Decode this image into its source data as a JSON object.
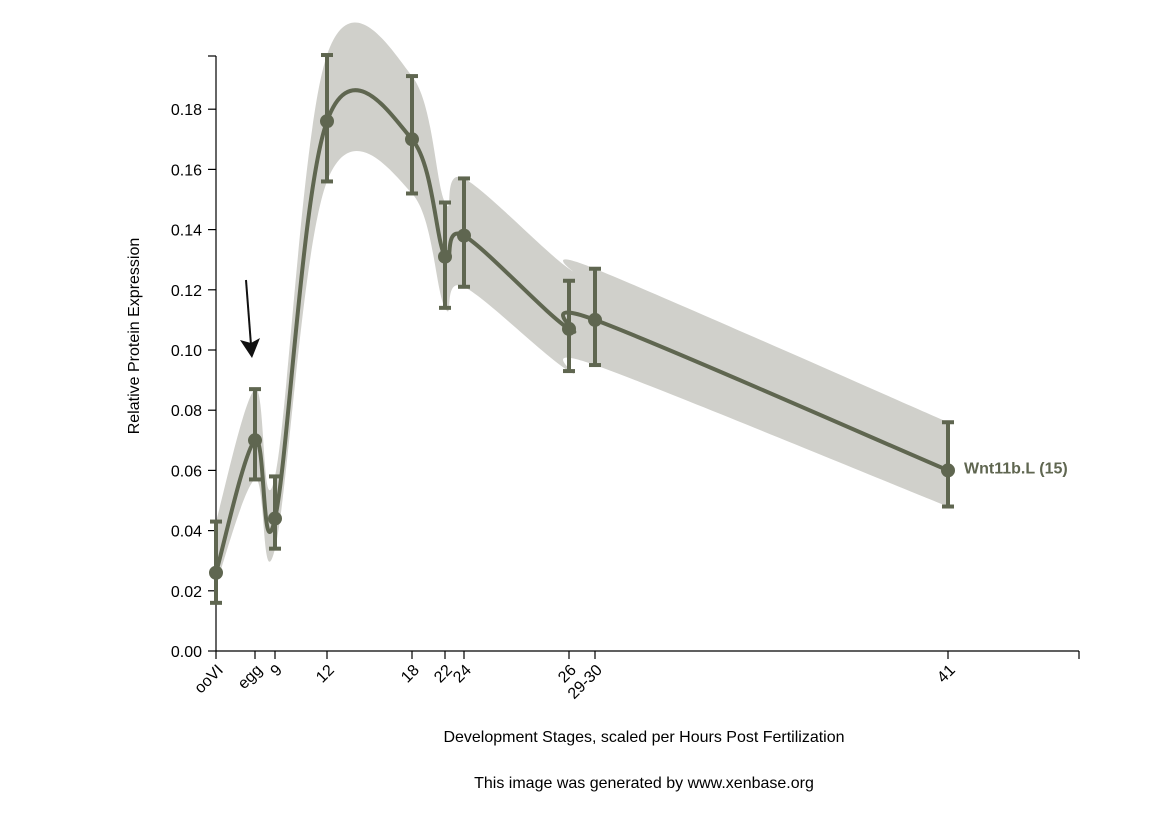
{
  "chart_data": {
    "type": "line",
    "title": "",
    "xlabel": "Development Stages, scaled per Hours Post Fertilization",
    "ylabel": "Relative Protein Expression",
    "ylim": [
      0,
      0.198
    ],
    "yticks": [
      "0.00",
      "0.02",
      "0.04",
      "0.06",
      "0.08",
      "0.10",
      "0.12",
      "0.14",
      "0.16",
      "0.18"
    ],
    "x_axis_note": "stages placed proportionally to hours post fertilization",
    "grid": false,
    "legend": "label at end of series (right)",
    "credit": "This image was generated by www.xenbase.org",
    "marker": "arrow pointing down at egg",
    "colors": {
      "series": "#5f6650",
      "band": "#d0d0cb"
    },
    "series": [
      {
        "name": "Wnt11b.L (15)",
        "points": [
          {
            "stage": "ooVI",
            "y": 0.026,
            "err_low": 0.016,
            "err_high": 0.043,
            "band_low": 0.022,
            "band_high": 0.043
          },
          {
            "stage": "egg",
            "y": 0.07,
            "err_low": 0.057,
            "err_high": 0.087,
            "band_low": 0.057,
            "band_high": 0.087
          },
          {
            "stage": "9",
            "y": 0.044,
            "err_low": 0.034,
            "err_high": 0.058,
            "band_low": 0.034,
            "band_high": 0.058
          },
          {
            "stage": "12",
            "y": 0.176,
            "err_low": 0.156,
            "err_high": 0.198,
            "band_low": 0.156,
            "band_high": 0.198
          },
          {
            "stage": "18",
            "y": 0.17,
            "err_low": 0.152,
            "err_high": 0.191,
            "band_low": 0.152,
            "band_high": 0.191
          },
          {
            "stage": "22",
            "y": 0.131,
            "err_low": 0.114,
            "err_high": 0.149,
            "band_low": 0.114,
            "band_high": 0.149
          },
          {
            "stage": "24",
            "y": 0.138,
            "err_low": 0.121,
            "err_high": 0.157,
            "band_low": 0.121,
            "band_high": 0.157
          },
          {
            "stage": "26",
            "y": 0.107,
            "err_low": 0.093,
            "err_high": 0.123,
            "band_low": 0.093,
            "band_high": 0.127
          },
          {
            "stage": "29-30",
            "y": 0.11,
            "err_low": 0.095,
            "err_high": 0.127,
            "band_low": 0.095,
            "band_high": 0.127
          },
          {
            "stage": "41",
            "y": 0.06,
            "err_low": 0.048,
            "err_high": 0.076,
            "band_low": 0.048,
            "band_high": 0.076
          }
        ]
      }
    ]
  }
}
